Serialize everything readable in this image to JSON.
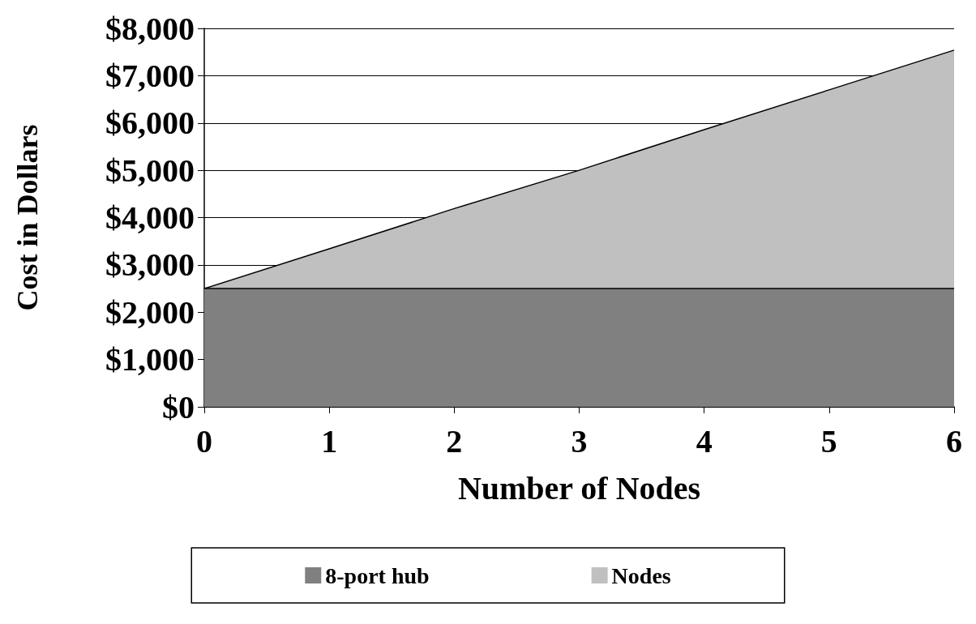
{
  "chart_data": {
    "type": "area",
    "stacked": true,
    "xlabel": "Number of Nodes",
    "ylabel": "Cost in Dollars",
    "x": [
      0,
      1,
      2,
      3,
      4,
      5,
      6
    ],
    "series": [
      {
        "name": "8-port hub",
        "color": "#808080",
        "values": [
          2500,
          2500,
          2500,
          2500,
          2500,
          2500,
          2500
        ]
      },
      {
        "name": "Nodes",
        "color": "#c0c0c0",
        "values": [
          0,
          840,
          1690,
          2500,
          3360,
          4200,
          5040
        ]
      }
    ],
    "xlim": [
      0,
      6
    ],
    "xticks": [
      0,
      1,
      2,
      3,
      4,
      5,
      6
    ],
    "ylim": [
      0,
      8000
    ],
    "yticks": [
      {
        "value": 0,
        "label": "$0"
      },
      {
        "value": 1000,
        "label": "$1,000"
      },
      {
        "value": 2000,
        "label": "$2,000"
      },
      {
        "value": 3000,
        "label": "$3,000"
      },
      {
        "value": 4000,
        "label": "$4,000"
      },
      {
        "value": 5000,
        "label": "$5,000"
      },
      {
        "value": 6000,
        "label": "$6,000"
      },
      {
        "value": 7000,
        "label": "$7,000"
      },
      {
        "value": 8000,
        "label": "$8,000"
      }
    ],
    "grid": "y",
    "legend": "bottom"
  }
}
